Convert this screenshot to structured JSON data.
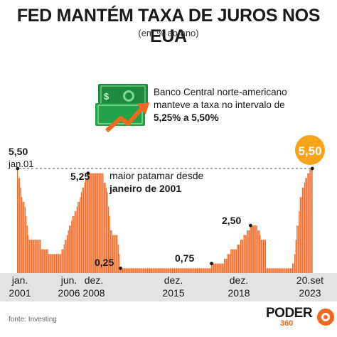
{
  "header": {
    "title": "FED MANTÉM TAXA DE JUROS NOS EUA",
    "subtitle": "(em % ao ano)"
  },
  "note": {
    "line1": "Banco Central norte-americano",
    "line2": "manteve a taxa no intervalo de",
    "line3": "5,25% a 5,50%",
    "icon": "money-rising-icon"
  },
  "source": "fonte: Investing",
  "brand": {
    "word": "PODER",
    "number": "360",
    "icon": "poder360-logo-icon"
  },
  "colors": {
    "bar": "#f26722",
    "highlight": "#f9a21b",
    "axis_band": "#e3e3e3",
    "icon_green": "#1d8a3c"
  },
  "chart_data": {
    "type": "bar",
    "ylim": [
      0,
      6
    ],
    "start": "jan.2001",
    "interval": "month",
    "annotations": {
      "start_value": "5,50",
      "start_label": "jan.01",
      "peak2006": "5,25",
      "low2008": "0,25",
      "rise2015": "0,75",
      "peak2018": "2,50",
      "current": "5,50",
      "reference_line1": "maior patamar desde",
      "reference_line2": "janeiro de 2001"
    },
    "x_ticks": [
      {
        "top": "jan.",
        "bottom": "2001"
      },
      {
        "top": "jun.",
        "bottom": "2006"
      },
      {
        "top": "dez.",
        "bottom": "2008"
      },
      {
        "top": "dez.",
        "bottom": "2015"
      },
      {
        "top": "dez.",
        "bottom": "2018"
      },
      {
        "top": "20.set",
        "bottom": "2023"
      }
    ],
    "values": [
      5.5,
      5.0,
      5.0,
      4.5,
      4.0,
      3.75,
      3.75,
      3.5,
      3.0,
      2.5,
      2.0,
      1.75,
      1.75,
      1.75,
      1.75,
      1.75,
      1.75,
      1.75,
      1.75,
      1.75,
      1.75,
      1.75,
      1.25,
      1.25,
      1.25,
      1.25,
      1.25,
      1.25,
      1.25,
      1.0,
      1.0,
      1.0,
      1.0,
      1.0,
      1.0,
      1.0,
      1.0,
      1.0,
      1.0,
      1.0,
      1.0,
      1.25,
      1.25,
      1.5,
      1.75,
      1.75,
      2.0,
      2.25,
      2.5,
      2.5,
      2.75,
      3.0,
      3.0,
      3.25,
      3.25,
      3.5,
      3.75,
      3.75,
      4.0,
      4.25,
      4.5,
      4.5,
      4.75,
      5.0,
      5.0,
      5.25,
      5.25,
      5.25,
      5.25,
      5.25,
      5.25,
      5.25,
      5.25,
      5.25,
      5.25,
      5.25,
      5.25,
      5.25,
      5.25,
      5.25,
      4.75,
      4.75,
      4.5,
      4.25,
      3.5,
      3.0,
      2.25,
      2.25,
      2.0,
      2.0,
      2.0,
      2.0,
      2.0,
      1.5,
      1.0,
      0.25,
      0.25,
      0.25,
      0.25,
      0.25,
      0.25,
      0.25,
      0.25,
      0.25,
      0.25,
      0.25,
      0.25,
      0.25,
      0.25,
      0.25,
      0.25,
      0.25,
      0.25,
      0.25,
      0.25,
      0.25,
      0.25,
      0.25,
      0.25,
      0.25,
      0.25,
      0.25,
      0.25,
      0.25,
      0.25,
      0.25,
      0.25,
      0.25,
      0.25,
      0.25,
      0.25,
      0.25,
      0.25,
      0.25,
      0.25,
      0.25,
      0.25,
      0.25,
      0.25,
      0.25,
      0.25,
      0.25,
      0.25,
      0.25,
      0.25,
      0.25,
      0.25,
      0.25,
      0.25,
      0.25,
      0.25,
      0.25,
      0.25,
      0.25,
      0.25,
      0.25,
      0.25,
      0.25,
      0.25,
      0.25,
      0.25,
      0.25,
      0.25,
      0.25,
      0.25,
      0.25,
      0.25,
      0.25,
      0.25,
      0.25,
      0.25,
      0.25,
      0.25,
      0.25,
      0.25,
      0.25,
      0.25,
      0.25,
      0.25,
      0.5,
      0.5,
      0.5,
      0.5,
      0.5,
      0.5,
      0.5,
      0.5,
      0.5,
      0.5,
      0.5,
      0.5,
      0.75,
      0.75,
      0.75,
      1.0,
      1.0,
      1.0,
      1.25,
      1.25,
      1.25,
      1.25,
      1.25,
      1.25,
      1.5,
      1.5,
      1.5,
      1.75,
      1.75,
      1.75,
      2.0,
      2.0,
      2.0,
      2.25,
      2.25,
      2.25,
      2.5,
      2.5,
      2.5,
      2.5,
      2.5,
      2.5,
      2.5,
      2.25,
      2.25,
      2.0,
      1.75,
      1.75,
      1.75,
      1.75,
      1.75,
      0.25,
      0.25,
      0.25,
      0.25,
      0.25,
      0.25,
      0.25,
      0.25,
      0.25,
      0.25,
      0.25,
      0.25,
      0.25,
      0.25,
      0.25,
      0.25,
      0.25,
      0.25,
      0.25,
      0.25,
      0.25,
      0.25,
      0.25,
      0.25,
      0.5,
      0.5,
      1.0,
      1.75,
      2.5,
      2.5,
      3.25,
      4.0,
      4.0,
      4.5,
      4.5,
      4.75,
      5.0,
      5.0,
      5.25,
      5.25,
      5.5,
      5.5,
      5.5
    ]
  }
}
